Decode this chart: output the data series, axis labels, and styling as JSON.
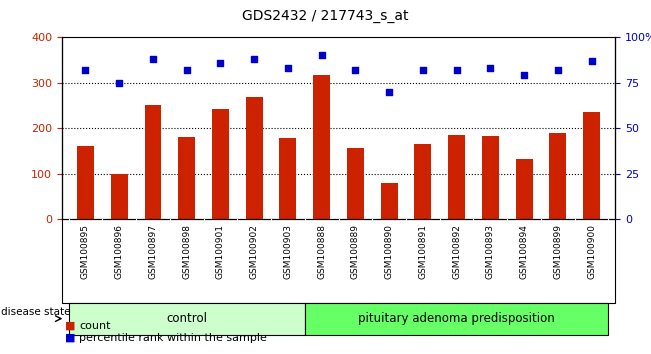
{
  "title": "GDS2432 / 217743_s_at",
  "samples": [
    "GSM100895",
    "GSM100896",
    "GSM100897",
    "GSM100898",
    "GSM100901",
    "GSM100902",
    "GSM100903",
    "GSM100888",
    "GSM100889",
    "GSM100890",
    "GSM100891",
    "GSM100892",
    "GSM100893",
    "GSM100894",
    "GSM100899",
    "GSM100900"
  ],
  "bar_values": [
    162,
    100,
    252,
    180,
    242,
    268,
    178,
    318,
    157,
    80,
    165,
    185,
    183,
    133,
    190,
    235
  ],
  "dot_values": [
    82,
    75,
    88,
    82,
    86,
    88,
    83,
    90,
    82,
    70,
    82,
    82,
    83,
    79,
    82,
    87
  ],
  "bar_color": "#cc2200",
  "dot_color": "#0000cc",
  "ylim_left": [
    0,
    400
  ],
  "ylim_right": [
    0,
    100
  ],
  "yticks_left": [
    0,
    100,
    200,
    300,
    400
  ],
  "yticks_right": [
    0,
    25,
    50,
    75,
    100
  ],
  "ytick_labels_right": [
    "0",
    "25",
    "50",
    "75",
    "100%"
  ],
  "grid_values": [
    100,
    200,
    300
  ],
  "group1_label": "control",
  "group2_label": "pituitary adenoma predisposition",
  "group1_count": 7,
  "group2_count": 9,
  "group1_color": "#ccffcc",
  "group2_color": "#66ff66",
  "disease_state_label": "disease state",
  "legend_bar_label": "count",
  "legend_dot_label": "percentile rank within the sample",
  "tick_area_color": "#dddddd",
  "background_color": "#ffffff"
}
